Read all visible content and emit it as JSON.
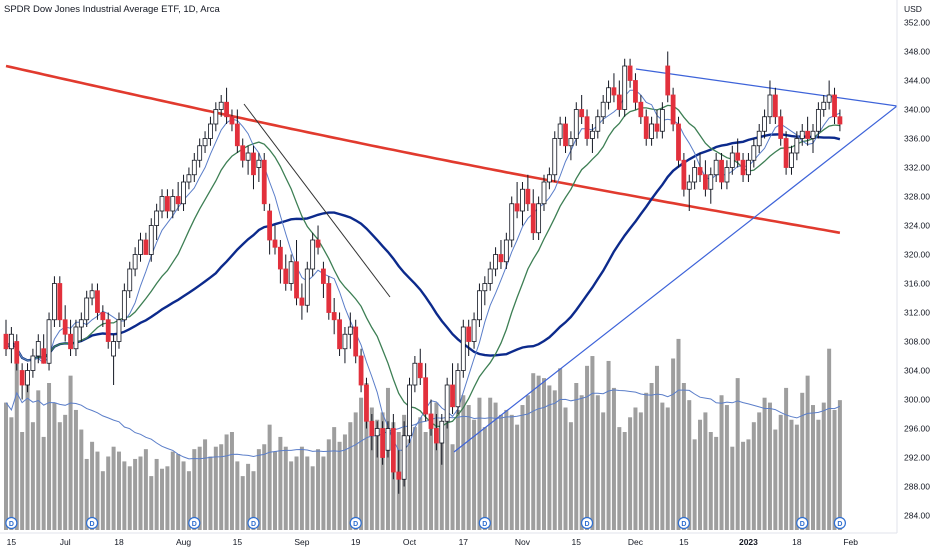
{
  "header": {
    "title": "SPDR Dow Jones Industrial Average ETF, 1D, Arca"
  },
  "colors": {
    "up": "#ffffff",
    "down": "#e2303c",
    "wick": "#131722",
    "volume": "#9e9e9e",
    "ma_short": "#5b7ec9",
    "ma_mid": "#3d7f54",
    "ma_mid_long": "#0c2a8c",
    "ma_long": "#e13a2e",
    "trendline": "#3d63d9",
    "vol_ma": "#5b7ec9",
    "div_badge": "#2f6fd1"
  },
  "chart_data": {
    "type": "candlestick",
    "title": "SPDR Dow Jones Industrial Average ETF, 1D, Arca",
    "y_unit": "USD",
    "ylim": [
      282,
      354
    ],
    "y_ticks": [
      "284.00",
      "288.00",
      "292.00",
      "296.00",
      "300.00",
      "304.00",
      "308.00",
      "312.00",
      "316.00",
      "320.00",
      "324.00",
      "328.00",
      "332.00",
      "336.00",
      "340.00",
      "344.00",
      "348.00",
      "352.00"
    ],
    "x_ticks": [
      {
        "label": "15",
        "i": 1
      },
      {
        "label": "Jul",
        "i": 11
      },
      {
        "label": "18",
        "i": 21
      },
      {
        "label": "Aug",
        "i": 33
      },
      {
        "label": "15",
        "i": 43
      },
      {
        "label": "Sep",
        "i": 55
      },
      {
        "label": "19",
        "i": 65
      },
      {
        "label": "Oct",
        "i": 75
      },
      {
        "label": "17",
        "i": 85
      },
      {
        "label": "Nov",
        "i": 96
      },
      {
        "label": "15",
        "i": 106
      },
      {
        "label": "Dec",
        "i": 117
      },
      {
        "label": "15",
        "i": 126
      },
      {
        "label": "2023",
        "i": 138
      },
      {
        "label": "18",
        "i": 147
      },
      {
        "label": "Feb",
        "i": 157
      }
    ],
    "dividend_markers": [
      1,
      16,
      35,
      46,
      65,
      89,
      108,
      126,
      148,
      155
    ],
    "candles": [
      [
        309,
        311,
        306,
        307
      ],
      [
        307,
        310,
        305,
        309
      ],
      [
        308,
        309,
        304,
        305
      ],
      [
        304,
        305,
        300,
        302
      ],
      [
        302,
        305,
        301,
        304
      ],
      [
        304,
        307,
        303,
        306
      ],
      [
        306,
        309,
        305,
        308
      ],
      [
        307,
        309,
        305,
        305
      ],
      [
        305,
        312,
        304,
        311
      ],
      [
        311,
        317,
        310,
        316
      ],
      [
        316,
        317,
        310,
        311
      ],
      [
        311,
        313,
        308,
        309
      ],
      [
        309,
        311,
        306,
        307
      ],
      [
        307,
        311,
        306,
        310
      ],
      [
        310,
        312,
        308,
        311
      ],
      [
        311,
        315,
        310,
        314
      ],
      [
        314,
        316,
        313,
        315
      ],
      [
        315,
        316,
        311,
        312
      ],
      [
        312,
        313,
        310,
        311
      ],
      [
        311,
        312,
        307,
        308
      ],
      [
        306,
        309,
        302,
        308
      ],
      [
        308,
        312,
        307,
        311
      ],
      [
        311,
        316,
        310,
        315
      ],
      [
        315,
        319,
        314,
        318
      ],
      [
        318,
        321,
        317,
        320
      ],
      [
        320,
        323,
        319,
        322
      ],
      [
        322,
        323,
        320,
        320
      ],
      [
        320,
        325,
        319,
        324
      ],
      [
        324,
        327,
        322,
        326
      ],
      [
        326,
        329,
        325,
        328
      ],
      [
        328,
        329,
        325,
        326
      ],
      [
        326,
        329,
        325,
        328
      ],
      [
        328,
        330,
        326,
        327
      ],
      [
        327,
        331,
        326,
        330
      ],
      [
        330,
        332,
        329,
        331
      ],
      [
        331,
        334,
        330,
        333
      ],
      [
        333,
        336,
        332,
        335
      ],
      [
        335,
        337,
        334,
        336
      ],
      [
        336,
        339,
        335,
        338
      ],
      [
        338,
        341,
        337,
        340
      ],
      [
        340,
        342,
        339,
        341
      ],
      [
        341,
        343,
        338,
        339
      ],
      [
        339,
        340,
        337,
        338
      ],
      [
        338,
        340,
        334,
        335
      ],
      [
        335,
        336,
        332,
        333
      ],
      [
        333,
        335,
        331,
        334
      ],
      [
        334,
        335,
        329,
        331
      ],
      [
        332,
        334,
        330,
        333
      ],
      [
        333,
        334,
        326,
        327
      ],
      [
        326,
        327,
        320,
        322
      ],
      [
        322,
        324,
        320,
        321
      ],
      [
        321,
        322,
        316,
        318
      ],
      [
        318,
        320,
        315,
        316
      ],
      [
        316,
        320,
        315,
        319
      ],
      [
        319,
        322,
        313,
        314
      ],
      [
        314,
        316,
        311,
        313
      ],
      [
        313,
        319,
        312,
        318
      ],
      [
        318,
        323,
        317,
        322
      ],
      [
        322,
        324,
        320,
        321
      ],
      [
        318,
        319,
        314,
        316
      ],
      [
        316,
        317,
        311,
        312
      ],
      [
        312,
        314,
        309,
        311
      ],
      [
        311,
        312,
        306,
        307
      ],
      [
        307,
        310,
        305,
        309
      ],
      [
        309,
        312,
        307,
        310
      ],
      [
        310,
        311,
        305,
        306
      ],
      [
        306,
        307,
        301,
        302
      ],
      [
        302,
        303,
        296,
        297
      ],
      [
        297,
        298,
        293,
        295
      ],
      [
        295,
        297,
        292,
        296
      ],
      [
        296,
        297,
        291,
        292
      ],
      [
        293,
        297,
        292,
        296
      ],
      [
        296,
        298,
        289,
        290
      ],
      [
        290,
        293,
        287,
        289
      ],
      [
        289,
        297,
        288,
        295
      ],
      [
        295,
        303,
        294,
        302
      ],
      [
        302,
        306,
        301,
        305
      ],
      [
        305,
        307,
        302,
        303
      ],
      [
        303,
        305,
        297,
        298
      ],
      [
        298,
        300,
        295,
        296
      ],
      [
        296,
        298,
        293,
        294
      ],
      [
        294,
        298,
        291,
        297
      ],
      [
        297,
        303,
        296,
        302
      ],
      [
        302,
        305,
        298,
        299
      ],
      [
        299,
        305,
        298,
        304
      ],
      [
        304,
        311,
        303,
        310
      ],
      [
        310,
        311,
        306,
        308
      ],
      [
        308,
        312,
        307,
        311
      ],
      [
        311,
        316,
        310,
        315
      ],
      [
        315,
        317,
        313,
        316
      ],
      [
        316,
        319,
        315,
        318
      ],
      [
        318,
        321,
        317,
        320
      ],
      [
        320,
        322,
        318,
        319
      ],
      [
        319,
        323,
        318,
        322
      ],
      [
        322,
        328,
        321,
        327
      ],
      [
        327,
        330,
        325,
        326
      ],
      [
        326,
        330,
        324,
        329
      ],
      [
        329,
        331,
        326,
        327
      ],
      [
        327,
        329,
        322,
        323
      ],
      [
        323,
        328,
        322,
        327
      ],
      [
        327,
        331,
        326,
        330
      ],
      [
        330,
        332,
        329,
        331
      ],
      [
        331,
        337,
        330,
        336
      ],
      [
        336,
        339,
        335,
        338
      ],
      [
        338,
        339,
        334,
        335
      ],
      [
        335,
        337,
        333,
        336
      ],
      [
        336,
        341,
        335,
        340
      ],
      [
        340,
        342,
        338,
        339
      ],
      [
        339,
        340,
        335,
        336
      ],
      [
        336,
        338,
        334,
        337
      ],
      [
        337,
        340,
        336,
        339
      ],
      [
        339,
        342,
        338,
        341
      ],
      [
        341,
        344,
        340,
        343
      ],
      [
        343,
        345,
        341,
        342
      ],
      [
        342,
        344,
        339,
        340
      ],
      [
        340,
        347,
        339,
        346
      ],
      [
        346,
        347,
        343,
        344
      ],
      [
        344,
        345,
        340,
        341
      ],
      [
        341,
        342,
        338,
        339
      ],
      [
        339,
        340,
        335,
        336
      ],
      [
        336,
        339,
        335,
        338
      ],
      [
        338,
        340,
        336,
        337
      ],
      [
        337,
        341,
        336,
        340
      ],
      [
        346,
        348,
        341,
        342
      ],
      [
        342,
        343,
        337,
        338
      ],
      [
        338,
        339,
        332,
        333
      ],
      [
        333,
        334,
        328,
        329
      ],
      [
        329,
        331,
        326,
        330
      ],
      [
        330,
        333,
        329,
        332
      ],
      [
        332,
        334,
        330,
        331
      ],
      [
        331,
        333,
        328,
        329
      ],
      [
        329,
        332,
        327,
        331
      ],
      [
        331,
        334,
        330,
        333
      ],
      [
        333,
        334,
        329,
        330
      ],
      [
        330,
        333,
        329,
        332
      ],
      [
        332,
        335,
        331,
        334
      ],
      [
        334,
        336,
        332,
        333
      ],
      [
        333,
        334,
        330,
        331
      ],
      [
        331,
        334,
        330,
        333
      ],
      [
        333,
        336,
        332,
        335
      ],
      [
        335,
        338,
        334,
        337
      ],
      [
        337,
        340,
        336,
        339
      ],
      [
        339,
        344,
        338,
        342
      ],
      [
        342,
        343,
        338,
        339
      ],
      [
        339,
        340,
        335,
        336
      ],
      [
        336,
        337,
        331,
        332
      ],
      [
        332,
        335,
        331,
        334
      ],
      [
        334,
        337,
        333,
        336
      ],
      [
        336,
        338,
        335,
        337
      ],
      [
        337,
        339,
        335,
        336
      ],
      [
        336,
        338,
        334,
        337
      ],
      [
        337,
        341,
        336,
        340
      ],
      [
        340,
        342,
        339,
        341
      ],
      [
        341,
        344,
        340,
        342
      ],
      [
        342,
        343,
        338,
        339
      ],
      [
        339,
        340,
        337,
        338
      ]
    ],
    "volume": [
      52,
      46,
      70,
      40,
      61,
      44,
      57,
      38,
      60,
      52,
      44,
      47,
      63,
      49,
      41,
      29,
      36,
      32,
      24,
      30,
      34,
      32,
      28,
      26,
      29,
      30,
      33,
      22,
      29,
      25,
      26,
      32,
      31,
      28,
      24,
      33,
      34,
      37,
      30,
      34,
      35,
      39,
      40,
      28,
      22,
      27,
      24,
      33,
      35,
      43,
      32,
      38,
      34,
      28,
      30,
      34,
      30,
      26,
      33,
      30,
      37,
      42,
      36,
      39,
      44,
      48,
      54,
      60,
      50,
      45,
      48,
      58,
      44,
      40,
      47,
      37,
      42,
      46,
      40,
      44,
      52,
      38,
      44,
      35,
      49,
      55,
      51,
      45,
      54,
      42,
      54,
      52,
      47,
      49,
      47,
      43,
      51,
      55,
      64,
      63,
      62,
      59,
      57,
      66,
      50,
      44,
      60,
      55,
      67,
      71,
      55,
      48,
      69,
      58,
      42,
      40,
      46,
      50,
      48,
      56,
      60,
      67,
      52,
      50,
      70,
      78,
      60,
      53,
      37,
      45,
      48,
      40,
      38,
      55,
      51,
      34,
      62,
      36,
      37,
      44,
      48,
      54,
      52,
      41,
      47,
      58,
      45,
      43,
      56,
      63,
      51,
      45,
      52,
      74,
      49,
      53,
      70,
      46
    ]
  }
}
